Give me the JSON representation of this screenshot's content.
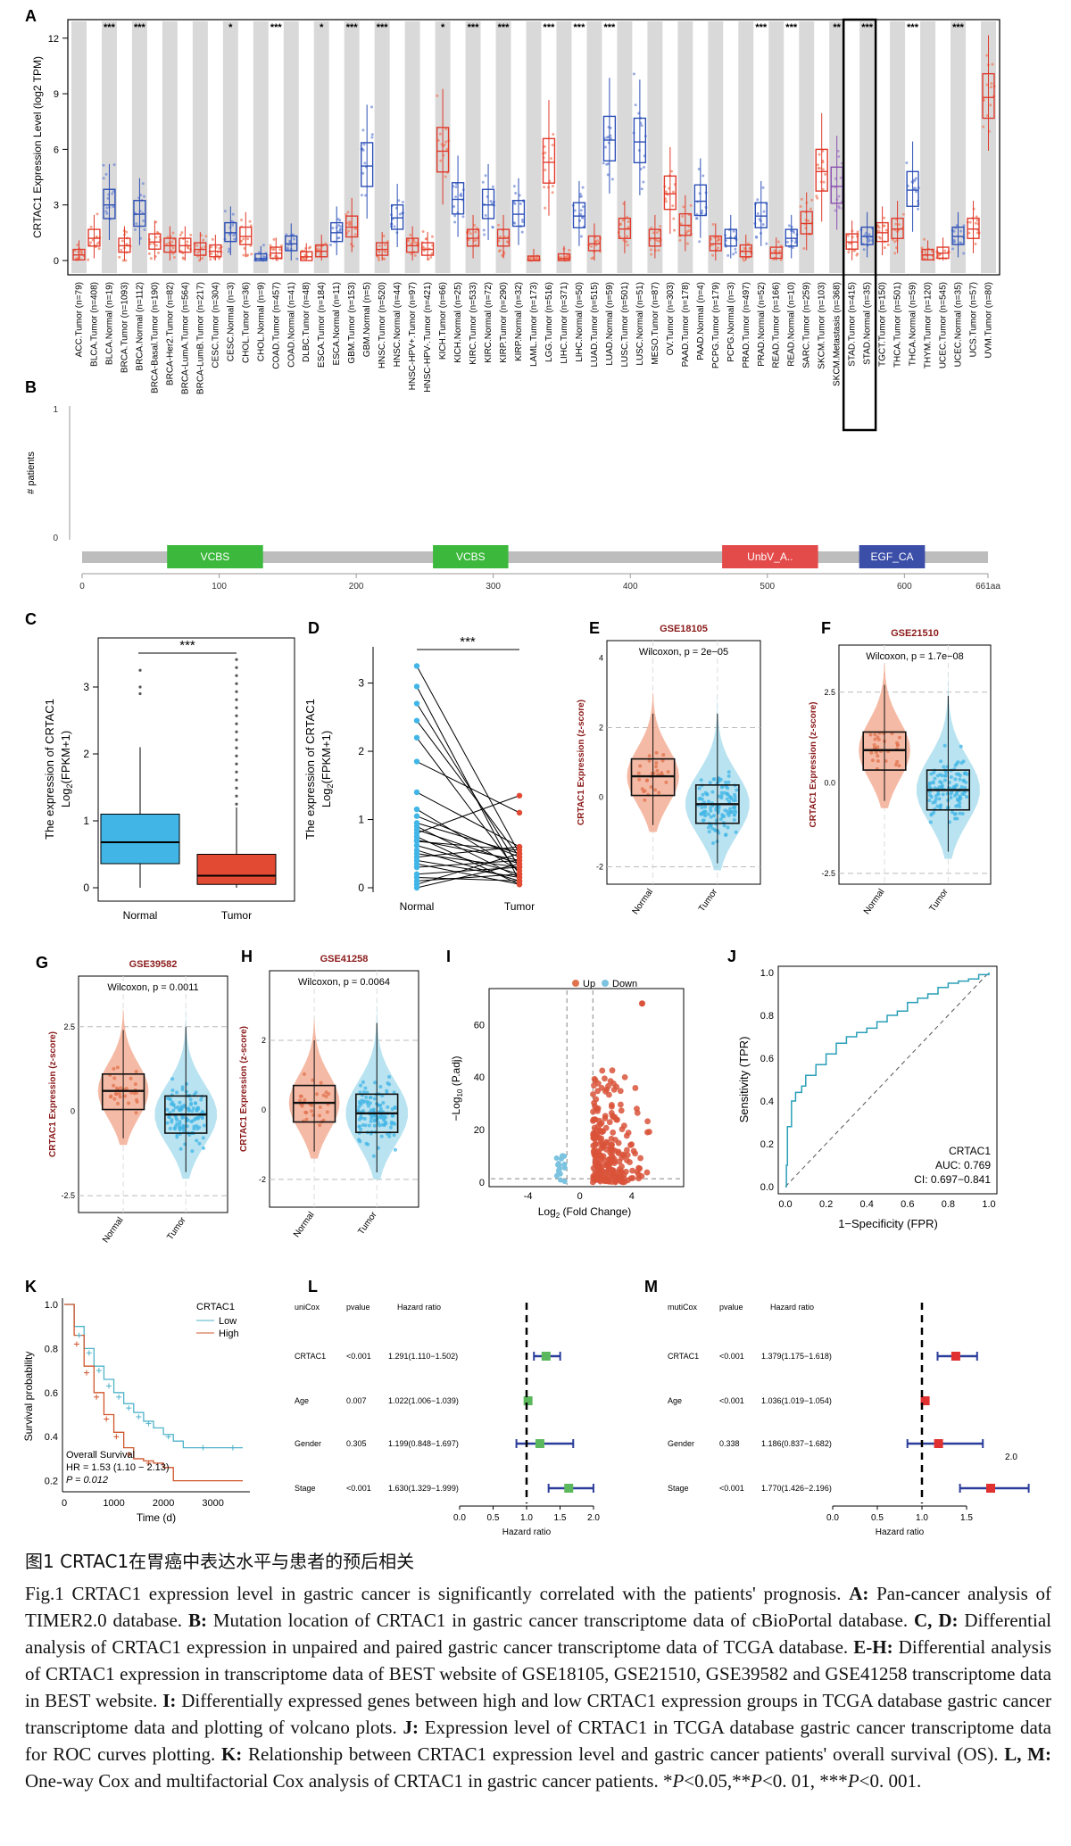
{
  "panels": {
    "A": "A",
    "B": "B",
    "C": "C",
    "D": "D",
    "E": "E",
    "F": "F",
    "G": "G",
    "H": "H",
    "I": "I",
    "J": "J",
    "K": "K",
    "L": "L",
    "M": "M"
  },
  "panelA": {
    "ylabel": "CRTAC1 Expression Level (log2 TPM)",
    "yticks": [
      "0",
      "3",
      "6",
      "9",
      "12"
    ],
    "signif": [
      {
        "i": 2,
        "s": "***"
      },
      {
        "i": 4,
        "s": "***"
      },
      {
        "i": 10,
        "s": "*"
      },
      {
        "i": 13,
        "s": "***"
      },
      {
        "i": 16,
        "s": "*"
      },
      {
        "i": 18,
        "s": "***"
      },
      {
        "i": 20,
        "s": "***"
      },
      {
        "i": 24,
        "s": "*"
      },
      {
        "i": 26,
        "s": "***"
      },
      {
        "i": 28,
        "s": "***"
      },
      {
        "i": 31,
        "s": "***"
      },
      {
        "i": 33,
        "s": "***"
      },
      {
        "i": 35,
        "s": "***"
      },
      {
        "i": 45,
        "s": "***"
      },
      {
        "i": 47,
        "s": "***"
      },
      {
        "i": 50,
        "s": "**"
      },
      {
        "i": 52,
        "s": "***"
      },
      {
        "i": 55,
        "s": "***"
      },
      {
        "i": 58,
        "s": "***"
      }
    ],
    "groups": [
      "ACC.Tumor (n=79)",
      "BLCA.Tumor (n=408)",
      "BLCA.Normal (n=19)",
      "BRCA.Tumor (n=1093)",
      "BRCA.Normal (n=112)",
      "BRCA-Basal.Tumor (n=190)",
      "BRCA-Her2.Tumor (n=82)",
      "BRCA-LumA.Tumor (n=564)",
      "BRCA-LumB.Tumor (n=217)",
      "CESC.Tumor (n=304)",
      "CESC.Normal (n=3)",
      "CHOL.Tumor (n=36)",
      "CHOL.Normal (n=9)",
      "COAD.Tumor (n=457)",
      "COAD.Normal (n=41)",
      "DLBC.Tumor (n=48)",
      "ESCA.Tumor (n=184)",
      "ESCA.Normal (n=11)",
      "GBM.Tumor (n=153)",
      "GBM.Normal (n=5)",
      "HNSC.Tumor (n=520)",
      "HNSC.Normal (n=44)",
      "HNSC-HPV+.Tumor (n=97)",
      "HNSC-HPV-.Tumor (n=421)",
      "KICH.Tumor (n=66)",
      "KICH.Normal (n=25)",
      "KIRC.Tumor (n=533)",
      "KIRC.Normal (n=72)",
      "KIRP.Tumor (n=290)",
      "KIRP.Normal (n=32)",
      "LAML.Tumor (n=173)",
      "LGG.Tumor (n=516)",
      "LIHC.Tumor (n=371)",
      "LIHC.Normal (n=50)",
      "LUAD.Tumor (n=515)",
      "LUAD.Normal (n=59)",
      "LUSC.Tumor (n=501)",
      "LUSC.Normal (n=51)",
      "MESO.Tumor (n=87)",
      "OV.Tumor (n=303)",
      "PAAD.Tumor (n=178)",
      "PAAD.Normal (n=4)",
      "PCPG.Tumor (n=179)",
      "PCPG.Normal (n=3)",
      "PRAD.Tumor (n=497)",
      "PRAD.Normal (n=52)",
      "READ.Tumor (n=166)",
      "READ.Normal (n=10)",
      "SARC.Tumor (n=259)",
      "SKCM.Tumor (n=103)",
      "SKCM.Metastasis (n=368)",
      "STAD.Tumor (n=415)",
      "STAD.Normal (n=35)",
      "TGCT.Tumor (n=150)",
      "THCA.Tumor (n=501)",
      "THCA.Normal (n=59)",
      "THYM.Tumor (n=120)",
      "UCEC.Tumor (n=545)",
      "UCEC.Normal (n=35)",
      "UCS.Tumor (n=57)",
      "UVM.Tumor (n=80)"
    ]
  },
  "panelB": {
    "ylabel": "# patients",
    "yticks": [
      "0",
      "1"
    ],
    "domains": [
      {
        "name": "VCBS",
        "start": 62,
        "end": 132,
        "color": "#3cb83c"
      },
      {
        "name": "VCBS",
        "start": 256,
        "end": 311,
        "color": "#3cb83c"
      },
      {
        "name": "UnbV_A..",
        "start": 467,
        "end": 537,
        "color": "#e34a4a"
      },
      {
        "name": "EGF_CA",
        "start": 567,
        "end": 615,
        "color": "#3c4fa8"
      }
    ],
    "xticks": [
      "0",
      "100",
      "200",
      "300",
      "400",
      "500",
      "600",
      "661aa"
    ]
  },
  "panelC": {
    "ylabel": [
      "The expression of CRTAC1",
      "Log",
      "(FPKM+1)"
    ],
    "categories": [
      "Normal",
      "Tumor"
    ],
    "yticks": [
      "0",
      "1",
      "2",
      "3"
    ],
    "sig": "***"
  },
  "panelD": {
    "ylabel": [
      "The expression of CRTAC1",
      "Log",
      "(FPKM+1)"
    ],
    "categories": [
      "Normal",
      "Tumor"
    ],
    "yticks": [
      "0",
      "1",
      "2",
      "3"
    ],
    "sig": "***"
  },
  "panelE": {
    "title": "GSE18105",
    "stat": "Wilcoxon, p = 2e−05",
    "ylabel": "CRTAC1 Expression (z-score)",
    "categories": [
      "Normal",
      "Tumor"
    ],
    "yticks": [
      "-2",
      "0",
      "2",
      "4"
    ]
  },
  "panelF": {
    "title": "GSE21510",
    "stat": "Wilcoxon, p = 1.7e−08",
    "ylabel": "CRTAC1 Expression (z-score)",
    "categories": [
      "Normal",
      "Tumor"
    ],
    "yticks": [
      "-2.5",
      "0.0",
      "2.5"
    ]
  },
  "panelG": {
    "title": "GSE39582",
    "stat": "Wilcoxon, p = 0.0011",
    "ylabel": "CRTAC1 Expression (z-score)",
    "categories": [
      "Normal",
      "Tumor"
    ],
    "yticks": [
      "-2.5",
      "0",
      "2.5"
    ]
  },
  "panelH": {
    "title": "GSE41258",
    "stat": "Wilcoxon, p = 0.0064",
    "ylabel": "CRTAC1 Expression (z-score)",
    "categories": [
      "Normal",
      "Tumor"
    ],
    "yticks": [
      "-2",
      "0",
      "2"
    ]
  },
  "panelI": {
    "legend": [
      "Up",
      "Down"
    ],
    "ylabel": "−Log",
    "ylabel_sub": "10",
    "ylabel_tail": " (P.adj)",
    "xlabel": "Log",
    "xlabel_sub": "2",
    "xlabel_tail": " (Fold Change)",
    "xticks": [
      "-4",
      "0",
      "4"
    ],
    "yticks": [
      "0",
      "20",
      "40",
      "60"
    ]
  },
  "panelJ": {
    "ylabel": "Sensitivity (TPR)",
    "xlabel": "1−Specificity (FPR)",
    "ticks": [
      "0.0",
      "0.2",
      "0.4",
      "0.6",
      "0.8",
      "1.0"
    ],
    "annot": [
      "CRTAC1",
      "AUC: 0.769",
      "CI: 0.697−0.841"
    ]
  },
  "panelK": {
    "ylabel": "Survival probability",
    "xlabel": "Time (d)",
    "yticks": [
      "0.2",
      "0.4",
      "0.6",
      "0.8",
      "1.0"
    ],
    "xticks": [
      "0",
      "1000",
      "2000",
      "3000"
    ],
    "legend_title": "CRTAC1",
    "legend": [
      "Low",
      "High"
    ],
    "annot": [
      "Overall Survival",
      "HR = 1.53 (1.10 − 2.13)",
      "P = 0.012"
    ]
  },
  "panelL": {
    "header": [
      "uniCox",
      "pvalue",
      "Hazard ratio"
    ],
    "rows": [
      {
        "name": "CRTAC1",
        "p": "<0.001",
        "hr": "1.291(1.110−1.502)",
        "est": 1.291,
        "lo": 1.11,
        "hi": 1.502
      },
      {
        "name": "Age",
        "p": "0.007",
        "hr": "1.022(1.006−1.039)",
        "est": 1.022,
        "lo": 1.006,
        "hi": 1.039
      },
      {
        "name": "Gender",
        "p": "0.305",
        "hr": "1.199(0.848−1.697)",
        "est": 1.199,
        "lo": 0.848,
        "hi": 1.697
      },
      {
        "name": "Stage",
        "p": "<0.001",
        "hr": "1.630(1.329−1.999)",
        "est": 1.63,
        "lo": 1.329,
        "hi": 1.999
      }
    ],
    "xticks": [
      "0.0",
      "0.5",
      "1.0",
      "1.5",
      "2.0"
    ],
    "xlabel": "Hazard ratio"
  },
  "panelM": {
    "header": [
      "mutiCox",
      "pvalue",
      "Hazard ratio"
    ],
    "rows": [
      {
        "name": "CRTAC1",
        "p": "<0.001",
        "hr": "1.379(1.175−1.618)",
        "est": 1.379,
        "lo": 1.175,
        "hi": 1.618
      },
      {
        "name": "Age",
        "p": "<0.001",
        "hr": "1.036(1.019−1.054)",
        "est": 1.036,
        "lo": 1.019,
        "hi": 1.054
      },
      {
        "name": "Gender",
        "p": "0.338",
        "hr": "1.186(0.837−1.682)",
        "est": 1.186,
        "lo": 0.837,
        "hi": 1.682
      },
      {
        "name": "Stage",
        "p": "<0.001",
        "hr": "1.770(1.426−2.196)",
        "est": 1.77,
        "lo": 1.426,
        "hi": 2.196
      }
    ],
    "xticks": [
      "0.0",
      "0.5",
      "1.0",
      "1.5"
    ],
    "extra_tick": "2.0",
    "xlabel": "Hazard ratio"
  },
  "caption": {
    "title": "图1  CRTAC1在胃癌中表达水平与患者的预后相关",
    "body": [
      {
        "t": "Fig.1  CRTAC1 expression level in gastric cancer is significantly correlated with the patients' prognosis. "
      },
      {
        "b": "A:"
      },
      {
        "t": " Pan-cancer analysis of TIMER2.0 database. "
      },
      {
        "b": "B:"
      },
      {
        "t": " Mutation location of CRTAC1 in gastric cancer transcriptome data of cBioPortal database. "
      },
      {
        "b": "C, D:"
      },
      {
        "t": " Differential analysis of CRTAC1 expression in unpaired and paired gastric cancer transcriptome data of TCGA database. "
      },
      {
        "b": "E-H:"
      },
      {
        "t": " Differential analysis of CRTAC1 expression in transcriptome data of BEST website of GSE18105, GSE21510, GSE39582 and GSE41258 transcriptome data in BEST website. "
      },
      {
        "b": "I:"
      },
      {
        "t": " Differentially expressed genes between high and low CRTAC1 expression groups in TCGA database gastric cancer transcriptome data and plotting of volcano plots. "
      },
      {
        "b": "J:"
      },
      {
        "t": " Expression level of CRTAC1 in TCGA database gastric cancer transcriptome data for ROC curves plotting. "
      },
      {
        "b": "K:"
      },
      {
        "t": " Relationship between CRTAC1 expression level and gastric cancer patients' overall survival (OS). "
      },
      {
        "b": "L, M:"
      },
      {
        "t": " One-way Cox and multifactorial Cox analysis of CRTAC1 in gastric cancer patients. *"
      },
      {
        "i": "P"
      },
      {
        "t": "<0.05,**"
      },
      {
        "i": "P"
      },
      {
        "t": "<0. 01, ***"
      },
      {
        "i": "P"
      },
      {
        "t": "<0. 001."
      }
    ]
  },
  "chart_data": [
    {
      "panel": "C",
      "type": "box",
      "categories": [
        "Normal",
        "Tumor"
      ],
      "boxes": [
        {
          "q1": 0.36,
          "median": 0.68,
          "q3": 1.1,
          "lo": 0.0,
          "hi": 2.1
        },
        {
          "q1": 0.05,
          "median": 0.18,
          "q3": 0.5,
          "lo": 0.0,
          "hi": 1.2
        }
      ],
      "ylim": [
        0,
        3.6
      ]
    },
    {
      "panel": "J",
      "type": "line",
      "name": "CRTAC1",
      "auc": 0.769,
      "ci": [
        0.697,
        0.841
      ],
      "x": [
        0,
        0.005,
        0.01,
        0.03,
        0.05,
        0.08,
        0.1,
        0.15,
        0.2,
        0.25,
        0.3,
        0.35,
        0.4,
        0.45,
        0.5,
        0.55,
        0.6,
        0.65,
        0.7,
        0.75,
        0.8,
        0.85,
        0.9,
        0.95,
        1.0
      ],
      "y": [
        0,
        0.1,
        0.28,
        0.4,
        0.44,
        0.47,
        0.52,
        0.57,
        0.62,
        0.67,
        0.7,
        0.72,
        0.74,
        0.77,
        0.8,
        0.82,
        0.86,
        0.88,
        0.9,
        0.93,
        0.95,
        0.96,
        0.97,
        0.99,
        1.0
      ],
      "xlim": [
        0,
        1
      ],
      "ylim": [
        0,
        1
      ]
    },
    {
      "panel": "K",
      "type": "line",
      "series": [
        {
          "name": "Low",
          "x": [
            0,
            200,
            400,
            600,
            800,
            1000,
            1200,
            1400,
            1600,
            1800,
            2000,
            2200,
            2400,
            2600,
            2800,
            3000,
            3200,
            3600
          ],
          "y": [
            1.0,
            0.9,
            0.8,
            0.72,
            0.66,
            0.6,
            0.55,
            0.51,
            0.47,
            0.44,
            0.41,
            0.38,
            0.35,
            0.35,
            0.35,
            0.35,
            0.35,
            0.35
          ]
        },
        {
          "name": "High",
          "x": [
            0,
            200,
            400,
            600,
            800,
            1000,
            1200,
            1400,
            1600,
            1800,
            2000,
            2200,
            2600,
            3000,
            3600
          ],
          "y": [
            1.0,
            0.86,
            0.72,
            0.6,
            0.5,
            0.42,
            0.35,
            0.3,
            0.29,
            0.28,
            0.26,
            0.2,
            0.2,
            0.2,
            0.2
          ]
        }
      ],
      "xlim": [
        0,
        3600
      ],
      "ylim": [
        0.2,
        1.0
      ]
    }
  ]
}
